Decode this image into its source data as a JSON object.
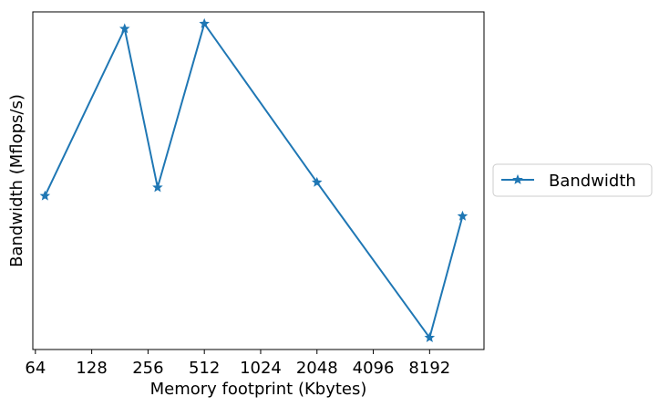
{
  "chart_data": {
    "type": "line",
    "title": "",
    "xlabel": "Memory footprint (Kbytes)",
    "ylabel": "Bandwidth (Mflops/s)",
    "x_scale": "log2",
    "x_ticks": [
      64,
      128,
      256,
      512,
      1024,
      2048,
      4096,
      8192
    ],
    "x_tick_labels": [
      "64",
      "128",
      "256",
      "512",
      "1024",
      "2048",
      "4096",
      "8192"
    ],
    "xlim": [
      62,
      16000
    ],
    "ylim": [
      0,
      100
    ],
    "y_ticks_shown": false,
    "grid": false,
    "legend_position": "outside-right",
    "series": [
      {
        "name": "Bandwidth",
        "color": "#1f77b4",
        "marker": "star",
        "x": [
          72,
          192,
          288,
          512,
          2048,
          8192,
          12288
        ],
        "y": [
          45.5,
          95,
          48,
          96.5,
          49.5,
          3.5,
          39.5
        ]
      }
    ]
  }
}
